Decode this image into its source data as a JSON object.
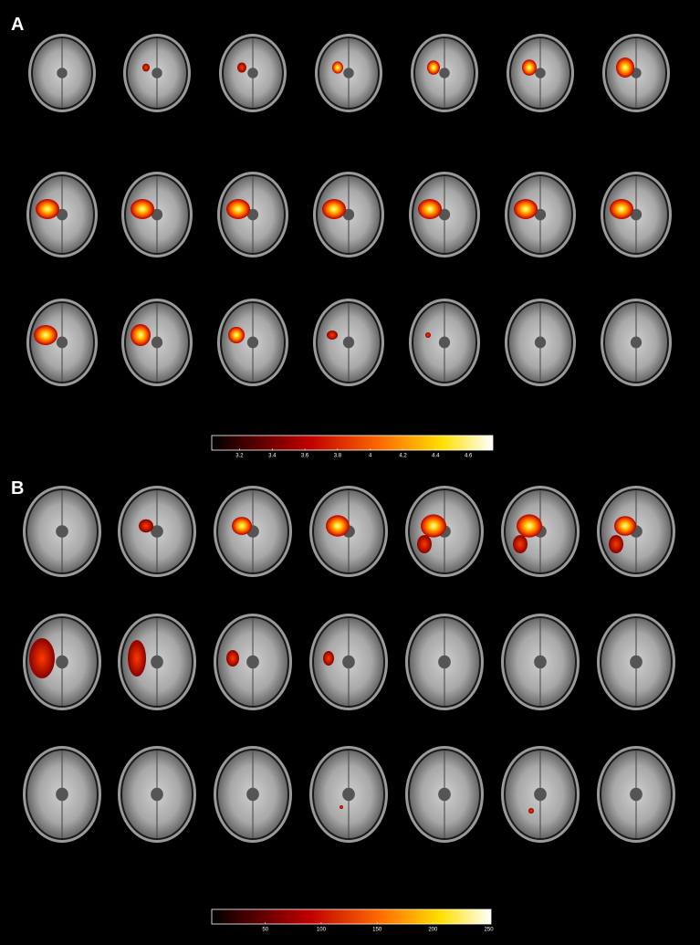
{
  "panels": [
    {
      "label": "A",
      "colorbar": {
        "lim": [
          3.03,
          4.75
        ],
        "ticks": [
          3.2,
          3.4,
          3.6,
          3.8,
          4,
          4.2,
          4.4,
          4.6
        ]
      }
    },
    {
      "label": "B",
      "colorbar": {
        "lim": [
          2,
          252
        ],
        "ticks": [
          50,
          100,
          150,
          200,
          250
        ]
      }
    }
  ]
}
